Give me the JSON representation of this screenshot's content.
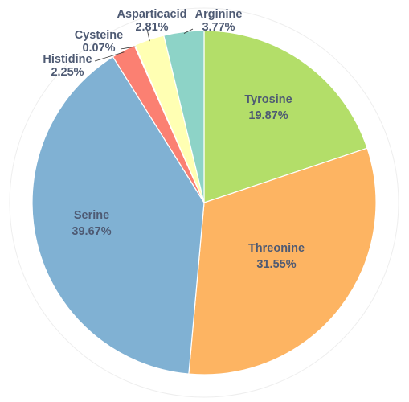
{
  "chart_data": {
    "type": "pie",
    "title": "",
    "slices": [
      {
        "label": "Tyrosine",
        "value": 19.87,
        "value_label": "19.87%",
        "color": "#b3de69"
      },
      {
        "label": "Threonine",
        "value": 31.55,
        "value_label": "31.55%",
        "color": "#fdb462"
      },
      {
        "label": "Serine",
        "value": 39.67,
        "value_label": "39.67%",
        "color": "#80b1d3"
      },
      {
        "label": "Histidine",
        "value": 2.25,
        "value_label": "2.25%",
        "color": "#fb8072"
      },
      {
        "label": "Cysteine",
        "value": 0.07,
        "value_label": "0.07%",
        "color": "#ffed6f"
      },
      {
        "label": "Asparticacid",
        "value": 2.81,
        "value_label": "2.81%",
        "color": "#ffffb3"
      },
      {
        "label": "Arginine",
        "value": 3.77,
        "value_label": "3.77%",
        "color": "#8dd3c7"
      }
    ],
    "start_angle": "12 o'clock",
    "direction": "clockwise",
    "legend": "none"
  }
}
